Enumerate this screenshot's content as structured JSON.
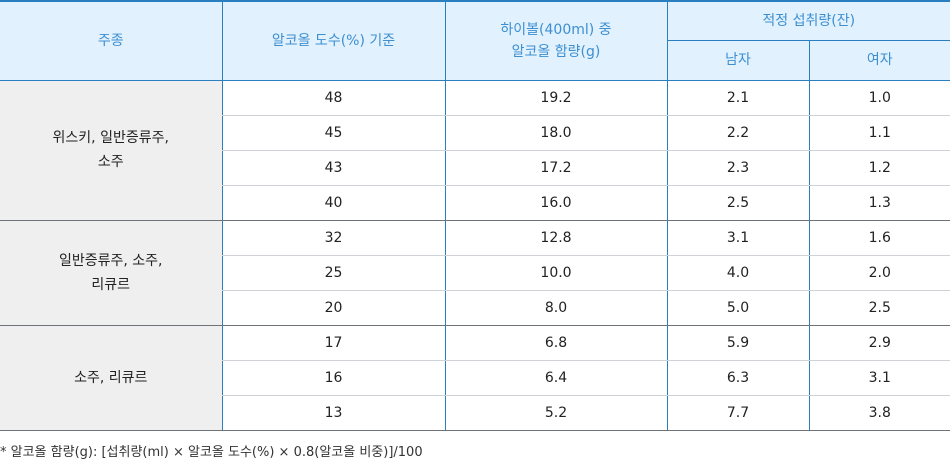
{
  "table": {
    "headers": {
      "type": "주종",
      "abv_basis": "알코올 도수(%) 기준",
      "highball_alcohol_line1": "하이볼(400ml) 중",
      "highball_alcohol_line2": "알코올 함량(g)",
      "recommended": "적정 섭취량(잔)",
      "male": "남자",
      "female": "여자"
    },
    "groups": [
      {
        "label_line1": "위스키, 일반증류주,",
        "label_line2": "소주",
        "rows": [
          {
            "abv": "48",
            "grams": "19.2",
            "male": "2.1",
            "female": "1.0"
          },
          {
            "abv": "45",
            "grams": "18.0",
            "male": "2.2",
            "female": "1.1"
          },
          {
            "abv": "43",
            "grams": "17.2",
            "male": "2.3",
            "female": "1.2"
          },
          {
            "abv": "40",
            "grams": "16.0",
            "male": "2.5",
            "female": "1.3"
          }
        ]
      },
      {
        "label_line1": "일반증류주, 소주,",
        "label_line2": "리큐르",
        "rows": [
          {
            "abv": "32",
            "grams": "12.8",
            "male": "3.1",
            "female": "1.6"
          },
          {
            "abv": "25",
            "grams": "10.0",
            "male": "4.0",
            "female": "2.0"
          },
          {
            "abv": "20",
            "grams": "8.0",
            "male": "5.0",
            "female": "2.5"
          }
        ]
      },
      {
        "label_line1": "소주, 리큐르",
        "label_line2": "",
        "rows": [
          {
            "abv": "17",
            "grams": "6.8",
            "male": "5.9",
            "female": "2.9"
          },
          {
            "abv": "16",
            "grams": "6.4",
            "male": "6.3",
            "female": "3.1"
          },
          {
            "abv": "13",
            "grams": "5.2",
            "male": "7.7",
            "female": "3.8"
          }
        ]
      }
    ]
  },
  "footnote": "* 알코올 함량(g): [섭취량(ml) × 알코올 도수(%) × 0.8(알코올 비중)]/100",
  "colors": {
    "header_bg": "#e1f1fd",
    "header_text": "#3d8fd1",
    "border_blue": "#2a7fc1",
    "group_bg": "#efefef"
  }
}
